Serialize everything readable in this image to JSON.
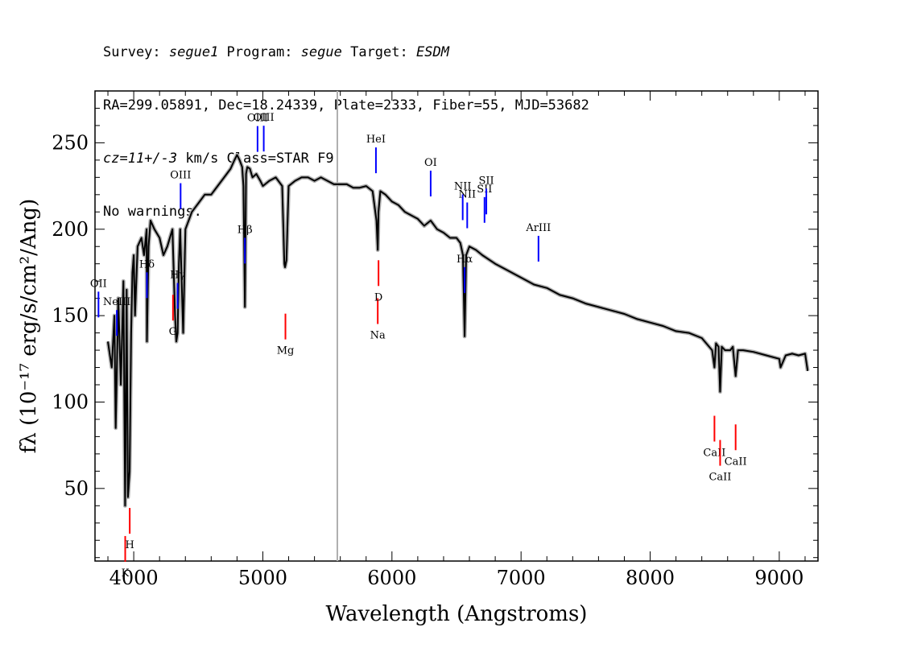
{
  "header": {
    "survey_label": "Survey: ",
    "survey": "segue1",
    "program_label": " Program: ",
    "program": "segue",
    "target_label": " Target: ",
    "target": "ESDM",
    "line2": "RA=299.05891, Dec=18.24339, Plate=2333, Fiber=55, MJD=53682",
    "cz": "cz=11+/-3",
    "cz_rest": " km/s Class=STAR F9",
    "line4": "No warnings."
  },
  "chart_data": {
    "type": "line",
    "xlabel": "Wavelength (Angstroms)",
    "ylabel": "fλ (10⁻¹⁷ erg/s/cm²/Ang)",
    "xlim": [
      3700,
      9300
    ],
    "ylim": [
      8,
      280
    ],
    "xticks": [
      4000,
      5000,
      6000,
      7000,
      8000,
      9000
    ],
    "yticks": [
      50,
      100,
      150,
      200,
      250
    ],
    "vline_x": 5577,
    "colors": {
      "spectrum": "#000000",
      "error": "#b0b0b0",
      "emission": "#0000ff",
      "absorption": "#ff0000",
      "vline": "#b0b0b0"
    },
    "series": [
      {
        "x": [
          3800,
          3830,
          3850,
          3860,
          3880,
          3900,
          3920,
          3933,
          3945,
          3955,
          3968,
          3980,
          3990,
          4000,
          4010,
          4030,
          4060,
          4080,
          4100,
          4102,
          4115,
          4130,
          4160,
          4200,
          4230,
          4260,
          4300,
          4320,
          4330,
          4340,
          4350,
          4360,
          4383,
          4400,
          4450,
          4500,
          4550,
          4600,
          4650,
          4700,
          4750,
          4780,
          4800,
          4820,
          4840,
          4850,
          4861,
          4870,
          4880,
          4900,
          4920,
          4950,
          4980,
          5000,
          5050,
          5100,
          5150,
          5167,
          5172,
          5183,
          5200,
          5250,
          5300,
          5350,
          5400,
          5450,
          5500,
          5550,
          5600,
          5650,
          5700,
          5750,
          5800,
          5850,
          5880,
          5890,
          5896,
          5910,
          5950,
          6000,
          6050,
          6100,
          6150,
          6200,
          6250,
          6300,
          6350,
          6400,
          6450,
          6500,
          6530,
          6550,
          6563,
          6575,
          6600,
          6650,
          6700,
          6800,
          6900,
          7000,
          7100,
          7200,
          7300,
          7400,
          7500,
          7600,
          7700,
          7800,
          7900,
          8000,
          8100,
          8200,
          8300,
          8400,
          8480,
          8498,
          8510,
          8530,
          8542,
          8555,
          8580,
          8620,
          8640,
          8662,
          8680,
          8720,
          8800,
          8900,
          9000,
          9010,
          9050,
          9100,
          9150,
          9200,
          9220
        ],
        "y": [
          135,
          120,
          150,
          85,
          160,
          110,
          170,
          40,
          165,
          45,
          60,
          140,
          175,
          185,
          150,
          190,
          195,
          185,
          200,
          135,
          190,
          205,
          200,
          195,
          185,
          190,
          200,
          150,
          135,
          140,
          180,
          200,
          140,
          200,
          210,
          215,
          220,
          220,
          225,
          230,
          235,
          240,
          243,
          240,
          236,
          225,
          155,
          232,
          236,
          235,
          230,
          232,
          228,
          225,
          228,
          230,
          225,
          180,
          178,
          182,
          225,
          228,
          230,
          230,
          228,
          230,
          228,
          226,
          226,
          226,
          224,
          224,
          225,
          222,
          205,
          188,
          210,
          222,
          220,
          216,
          214,
          210,
          208,
          206,
          202,
          205,
          200,
          198,
          195,
          195,
          192,
          185,
          138,
          185,
          190,
          188,
          185,
          180,
          176,
          172,
          168,
          166,
          162,
          160,
          157,
          155,
          153,
          151,
          148,
          146,
          144,
          141,
          140,
          137,
          130,
          120,
          134,
          132,
          106,
          132,
          130,
          130,
          132,
          115,
          130,
          130,
          129,
          127,
          125,
          120,
          127,
          128,
          127,
          128,
          118
        ]
      }
    ],
    "emission_lines": [
      {
        "label": "OII",
        "x": 3727
      },
      {
        "label": "NeIII",
        "x": 3869
      },
      {
        "label": "Hδ",
        "x": 4102
      },
      {
        "label": "Hγ",
        "x": 4340
      },
      {
        "label": "OIII",
        "x": 4363
      },
      {
        "label": "Hβ",
        "x": 4861
      },
      {
        "label": "OIII",
        "x": 4959
      },
      {
        "label": "OIII",
        "x": 5007
      },
      {
        "label": "HeI",
        "x": 5876
      },
      {
        "label": "OI",
        "x": 6300
      },
      {
        "label": "NII",
        "x": 6548
      },
      {
        "label": "Hα",
        "x": 6563
      },
      {
        "label": "NII",
        "x": 6583
      },
      {
        "label": "SII",
        "x": 6717
      },
      {
        "label": "SII",
        "x": 6731
      },
      {
        "label": "ArIII",
        "x": 7135
      }
    ],
    "absorption_lines": [
      {
        "label": "K",
        "x": 3934
      },
      {
        "label": "H",
        "x": 3969
      },
      {
        "label": "G",
        "x": 4304
      },
      {
        "label": "Mg",
        "x": 5175
      },
      {
        "label": "Na",
        "x": 5890
      },
      {
        "label": "D",
        "x": 5896
      },
      {
        "label": "CaII",
        "x": 8498
      },
      {
        "label": "CaII",
        "x": 8542
      },
      {
        "label": "CaII",
        "x": 8662
      }
    ]
  }
}
